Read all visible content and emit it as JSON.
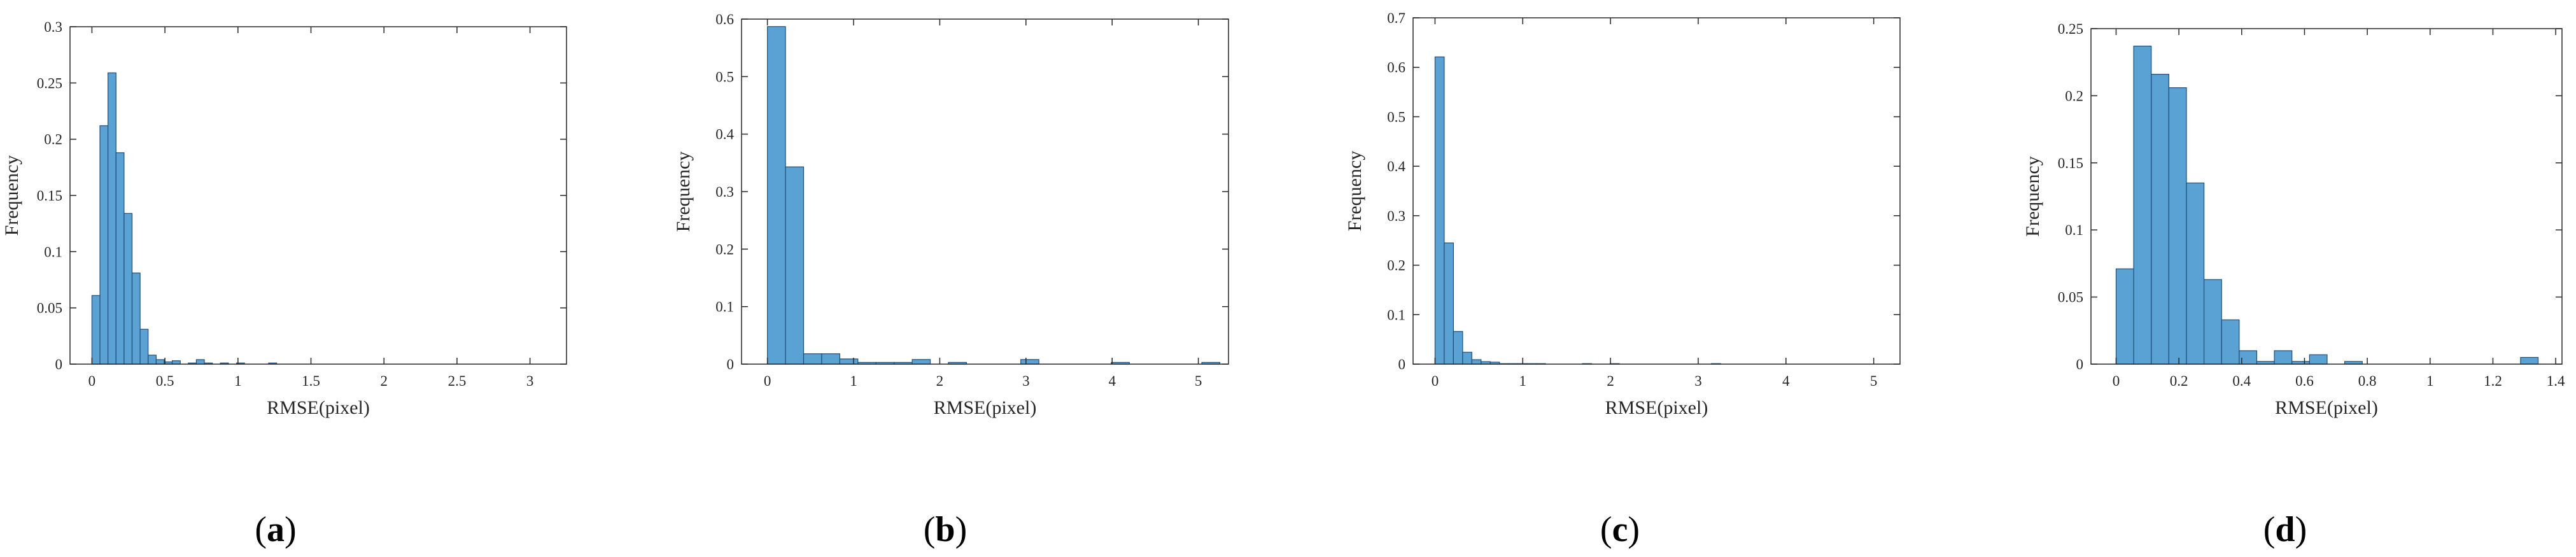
{
  "figure": {
    "bar_color": "#5aa2d4",
    "bar_edge_color": "#1f4e79",
    "axis_color": "#262626"
  },
  "chart_data": [
    {
      "type": "bar",
      "panel_label": "a",
      "xlabel": "RMSE(pixel)",
      "ylabel": "Frequency",
      "xlim": [
        -0.15,
        3.25
      ],
      "ylim": [
        0,
        0.3
      ],
      "xticks": [
        0,
        0.5,
        1,
        1.5,
        2,
        2.5,
        3
      ],
      "xtick_labels": [
        "0",
        "0.5",
        "1",
        "1.5",
        "2",
        "2.5",
        "3"
      ],
      "yticks": [
        0,
        0.05,
        0.1,
        0.15,
        0.2,
        0.25,
        0.3
      ],
      "ytick_labels": [
        "0",
        "0.05",
        "0.1",
        "0.15",
        "0.2",
        "0.25",
        "0.3"
      ],
      "bin_start": 0.0,
      "bin_width": 0.055,
      "values": [
        0.061,
        0.212,
        0.259,
        0.188,
        0.134,
        0.081,
        0.031,
        0.008,
        0.004,
        0.002,
        0.003,
        0.0,
        0.001,
        0.004,
        0.001,
        0.0,
        0.001,
        0.0,
        0.001,
        0.0,
        0.0,
        0.0,
        0.001,
        0.0,
        0.0,
        0.0,
        0.0,
        0.0,
        0.0,
        0.0,
        0.0,
        0.0,
        0.0,
        0.0,
        0.0,
        0.0,
        0.0,
        0.0,
        0.0,
        0.0,
        0.0,
        0.0,
        0.0,
        0.0,
        0.0,
        0.0,
        0.0,
        0.0,
        0.0,
        0.0,
        0.0,
        0.0,
        0.0,
        0.0,
        0.0,
        0.0
      ]
    },
    {
      "type": "bar",
      "panel_label": "b",
      "xlabel": "RMSE(pixel)",
      "ylabel": "Frequency",
      "xlim": [
        -0.3,
        5.35
      ],
      "ylim": [
        0,
        0.6
      ],
      "xticks": [
        0,
        1,
        2,
        3,
        4,
        5
      ],
      "xtick_labels": [
        "0",
        "1",
        "2",
        "3",
        "4",
        "5"
      ],
      "yticks": [
        0,
        0.1,
        0.2,
        0.3,
        0.4,
        0.5,
        0.6
      ],
      "ytick_labels": [
        "0",
        "0.1",
        "0.2",
        "0.3",
        "0.4",
        "0.5",
        "0.6"
      ],
      "bin_start": 0.0,
      "bin_width": 0.21,
      "values": [
        0.587,
        0.343,
        0.018,
        0.018,
        0.009,
        0.003,
        0.003,
        0.003,
        0.008,
        0.0,
        0.003,
        0.0,
        0.0,
        0.0,
        0.008,
        0.0,
        0.0,
        0.0,
        0.0,
        0.003,
        0.0,
        0.0,
        0.0,
        0.0,
        0.003
      ]
    },
    {
      "type": "bar",
      "panel_label": "c",
      "xlabel": "RMSE(pixel)",
      "ylabel": "Frequency",
      "xlim": [
        -0.25,
        5.3
      ],
      "ylim": [
        0,
        0.7
      ],
      "xticks": [
        0,
        1,
        2,
        3,
        4,
        5
      ],
      "xtick_labels": [
        "0",
        "1",
        "2",
        "3",
        "4",
        "5"
      ],
      "yticks": [
        0,
        0.1,
        0.2,
        0.3,
        0.4,
        0.5,
        0.6,
        0.7
      ],
      "ytick_labels": [
        "0",
        "0.1",
        "0.2",
        "0.3",
        "0.4",
        "0.5",
        "0.6",
        "0.7"
      ],
      "bin_start": 0.0,
      "bin_width": 0.105,
      "values": [
        0.621,
        0.245,
        0.066,
        0.024,
        0.009,
        0.005,
        0.004,
        0.001,
        0.001,
        0.001,
        0.001,
        0.001,
        0.0,
        0.0,
        0.0,
        0.0,
        0.001,
        0.0,
        0.0,
        0.001,
        0.0,
        0.0,
        0.0,
        0.0,
        0.0,
        0.0,
        0.0,
        0.0,
        0.0,
        0.0,
        0.001,
        0.0,
        0.0,
        0.0,
        0.0,
        0.0,
        0.0,
        0.0,
        0.0,
        0.0,
        0.0,
        0.0,
        0.0,
        0.0,
        0.0,
        0.0,
        0.0
      ]
    },
    {
      "type": "bar",
      "panel_label": "d",
      "xlabel": "RMSE(pixel)",
      "ylabel": "Frequency",
      "xlim": [
        -0.08,
        1.42
      ],
      "ylim": [
        0,
        0.25
      ],
      "xticks": [
        0,
        0.2,
        0.4,
        0.6,
        0.8,
        1,
        1.2,
        1.4
      ],
      "xtick_labels": [
        "0",
        "0.2",
        "0.4",
        "0.6",
        "0.8",
        "1",
        "1.2",
        "1.4"
      ],
      "yticks": [
        0,
        0.05,
        0.1,
        0.15,
        0.2,
        0.25
      ],
      "ytick_labels": [
        "0",
        "0.05",
        "0.1",
        "0.15",
        "0.2",
        "0.25"
      ],
      "bin_start": 0.0,
      "bin_width": 0.056,
      "values": [
        0.071,
        0.237,
        0.216,
        0.206,
        0.135,
        0.063,
        0.033,
        0.01,
        0.002,
        0.01,
        0.002,
        0.007,
        0.0,
        0.002,
        0.0,
        0.0,
        0.0,
        0.0,
        0.0,
        0.0,
        0.0,
        0.0,
        0.0,
        0.005
      ]
    }
  ]
}
